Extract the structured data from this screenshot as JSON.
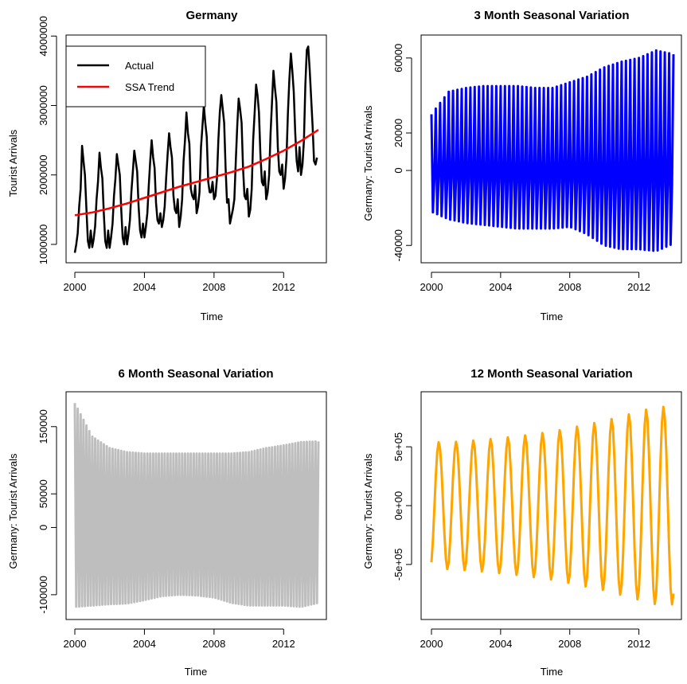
{
  "chart_data": [
    {
      "type": "line",
      "title": "Germany",
      "xlabel": "Time",
      "ylabel": "Tourist Arrivals",
      "xlim": [
        2000,
        2014
      ],
      "ylim": [
        850000,
        3900000
      ],
      "xticks": [
        2000,
        2004,
        2008,
        2012
      ],
      "xtick_labels": [
        "2000",
        "2004",
        "2008",
        "2012"
      ],
      "yticks": [
        1000000,
        2000000,
        3000000,
        4000000
      ],
      "ytick_labels": [
        "1000000",
        "2000000",
        "3000000",
        "4000000"
      ],
      "legend": {
        "position": "top-left",
        "entries": [
          "Actual",
          "SSA Trend"
        ]
      },
      "series": [
        {
          "name": "Actual",
          "color": "#000000",
          "x_start": 2000,
          "x_step": 0.0833333,
          "values": [
            880000,
            1000000,
            1160000,
            1550000,
            1800000,
            2420000,
            2200000,
            2000000,
            1500000,
            1050000,
            950000,
            1200000,
            960000,
            1080000,
            1260000,
            1650000,
            1900000,
            2320000,
            2100000,
            1950000,
            1450000,
            1050000,
            950000,
            1200000,
            950000,
            1100000,
            1300000,
            1700000,
            1950000,
            2300000,
            2150000,
            2000000,
            1500000,
            1100000,
            1000000,
            1250000,
            1000000,
            1150000,
            1350000,
            1750000,
            2050000,
            2350000,
            2200000,
            2050000,
            1550000,
            1200000,
            1100000,
            1300000,
            1100000,
            1250000,
            1450000,
            1850000,
            2200000,
            2500000,
            2250000,
            2100000,
            1600000,
            1350000,
            1300000,
            1450000,
            1250000,
            1350000,
            1550000,
            1950000,
            2300000,
            2600000,
            2400000,
            2250000,
            1700000,
            1500000,
            1450000,
            1650000,
            1250000,
            1400000,
            1650000,
            2200000,
            2500000,
            2900000,
            2600000,
            2450000,
            1800000,
            1700000,
            1650000,
            1850000,
            1450000,
            1550000,
            1750000,
            2400000,
            2700000,
            3000000,
            2750000,
            2550000,
            1900000,
            1750000,
            1750000,
            1900000,
            1650000,
            1700000,
            1950000,
            2500000,
            2900000,
            3150000,
            2950000,
            2750000,
            2100000,
            1600000,
            1650000,
            1300000,
            1400000,
            1500000,
            1650000,
            2200000,
            2700000,
            3100000,
            2950000,
            2750000,
            2100000,
            1700000,
            1650000,
            1800000,
            1400000,
            1500000,
            1800000,
            2500000,
            2900000,
            3300000,
            3150000,
            2900000,
            2300000,
            1900000,
            1850000,
            2050000,
            1650000,
            1750000,
            2000000,
            2600000,
            3050000,
            3500000,
            3250000,
            3050000,
            2400000,
            2050000,
            2000000,
            2150000,
            1800000,
            1950000,
            2250000,
            2900000,
            3400000,
            3750000,
            3500000,
            3200000,
            2600000,
            2200000,
            2050000,
            2400000,
            2000000,
            2150000,
            2500000,
            3300000,
            3800000,
            3850000,
            3500000,
            3100000,
            2700000,
            2200000,
            2150000,
            2250000
          ]
        },
        {
          "name": "SSA Trend",
          "color": "#ff0000",
          "x": [
            2000,
            2001,
            2002,
            2003,
            2004,
            2005,
            2006,
            2007,
            2008,
            2009,
            2010,
            2011,
            2012,
            2013,
            2014
          ],
          "values": [
            1420000,
            1460000,
            1520000,
            1590000,
            1670000,
            1750000,
            1830000,
            1900000,
            1970000,
            2040000,
            2120000,
            2230000,
            2350000,
            2490000,
            2650000
          ]
        }
      ]
    },
    {
      "type": "line",
      "title": "3 Month Seasonal Variation",
      "xlabel": "Time",
      "ylabel": "Germany: Tourist Arrivals",
      "xlim": [
        2000,
        2014
      ],
      "ylim": [
        -45000,
        68000
      ],
      "xticks": [
        2000,
        2004,
        2008,
        2012
      ],
      "xtick_labels": [
        "2000",
        "2004",
        "2008",
        "2012"
      ],
      "yticks": [
        -40000,
        0,
        20000,
        60000
      ],
      "ytick_labels": [
        "-40000",
        "0",
        "20000",
        "60000"
      ],
      "series": [
        {
          "color": "#0000ff",
          "x_start": 2000,
          "x_step": 0.0833333,
          "period": 3,
          "amplitude_x": [
            2000,
            2001,
            2002,
            2003,
            2004,
            2005,
            2006,
            2007,
            2008,
            2009,
            2010,
            2011,
            2012,
            2013,
            2014
          ],
          "amplitude_high": [
            30000,
            42000,
            44000,
            45000,
            45000,
            45000,
            44000,
            44000,
            47000,
            50000,
            55000,
            58000,
            60000,
            64000,
            62000
          ],
          "amplitude_low": [
            -22000,
            -26000,
            -28000,
            -29000,
            -30000,
            -31000,
            -31000,
            -31000,
            -30000,
            -34000,
            -40000,
            -42000,
            -42000,
            -43000,
            -39000
          ]
        }
      ]
    },
    {
      "type": "line",
      "title": "6 Month Seasonal Variation",
      "xlabel": "Time",
      "ylabel": "Germany: Tourist Arrivals",
      "xlim": [
        2000,
        2014
      ],
      "ylim": [
        -125000,
        190000
      ],
      "xticks": [
        2000,
        2004,
        2008,
        2012
      ],
      "xtick_labels": [
        "2000",
        "2004",
        "2008",
        "2012"
      ],
      "yticks": [
        -100000,
        0,
        50000,
        150000
      ],
      "ytick_labels": [
        "-100000",
        "0",
        "50000",
        "150000"
      ],
      "series": [
        {
          "color": "#bebebe",
          "x_start": 2000,
          "x_step": 0.0833333,
          "period": 2,
          "amplitude_x": [
            2000,
            2001,
            2002,
            2003,
            2004,
            2005,
            2006,
            2007,
            2008,
            2009,
            2010,
            2011,
            2012,
            2013,
            2014
          ],
          "amplitude_high": [
            185000,
            135000,
            118000,
            112000,
            110000,
            110000,
            110000,
            110000,
            110000,
            110000,
            112000,
            118000,
            122000,
            127000,
            128000
          ],
          "amplitude_low": [
            -118000,
            -116000,
            -114000,
            -113000,
            -108000,
            -102000,
            -100000,
            -101000,
            -104000,
            -112000,
            -116000,
            -116000,
            -116000,
            -118000,
            -112000
          ]
        }
      ]
    },
    {
      "type": "line",
      "title": "12 Month Seasonal Variation",
      "xlabel": "Time",
      "ylabel": "Germany: Tourist Arrivals",
      "xlim": [
        2000,
        2014
      ],
      "ylim": [
        -900000,
        900000
      ],
      "xticks": [
        2000,
        2004,
        2008,
        2012
      ],
      "xtick_labels": [
        "2000",
        "2004",
        "2008",
        "2012"
      ],
      "yticks": [
        -500000,
        0,
        500000
      ],
      "ytick_labels": [
        "-5e+05",
        "0e+00",
        "5e+05"
      ],
      "series": [
        {
          "color": "#ffa500",
          "x_start": 2000,
          "x_step": 0.0833333,
          "period": 12,
          "amplitude_x": [
            2000,
            2001,
            2002,
            2003,
            2004,
            2005,
            2006,
            2007,
            2008,
            2009,
            2010,
            2011,
            2012,
            2013,
            2014
          ],
          "amplitude": [
            540000,
            540000,
            550000,
            560000,
            575000,
            590000,
            610000,
            630000,
            660000,
            690000,
            720000,
            760000,
            800000,
            840000,
            840000
          ]
        }
      ]
    }
  ]
}
